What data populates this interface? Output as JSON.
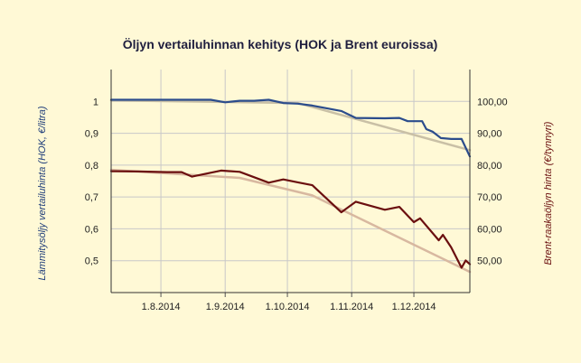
{
  "chart_data": {
    "type": "line",
    "title": "Öljyn vertailuhinnan kehitys (HOK ja Brent euroissa)",
    "x_ticks": [
      "1.8.2014",
      "1.9.2014",
      "1.10.2014",
      "1.11.2014",
      "1.12.2014"
    ],
    "x_range": [
      "2014-07-08",
      "2014-12-28"
    ],
    "y_left": {
      "label": "Lämmitysöljy vertailuhinta (HOK, €/litra)",
      "ticks": [
        "1",
        "0,9",
        "0,8",
        "0,7",
        "0,6",
        "0,5"
      ],
      "range": [
        0.4,
        1.1
      ]
    },
    "y_right": {
      "label": "Brent-raakaöljyn hinta (€/tynnyri)",
      "ticks": [
        "100,00",
        "90,00",
        "80,00",
        "70,00",
        "60,00",
        "50,00"
      ],
      "range": [
        40,
        110
      ]
    },
    "grid": true,
    "series": [
      {
        "axis": "left",
        "color": "#2b4c8c",
        "points": [
          [
            "2014-07-08",
            1.005
          ],
          [
            "2014-07-14",
            1.005
          ],
          [
            "2014-07-28",
            1.005
          ],
          [
            "2014-08-11",
            1.005
          ],
          [
            "2014-08-25",
            1.005
          ],
          [
            "2014-09-01",
            0.997
          ],
          [
            "2014-09-08",
            1.002
          ],
          [
            "2014-09-15",
            1.002
          ],
          [
            "2014-09-22",
            1.005
          ],
          [
            "2014-09-29",
            0.995
          ],
          [
            "2014-10-06",
            0.993
          ],
          [
            "2014-10-13",
            0.987
          ],
          [
            "2014-10-27",
            0.97
          ],
          [
            "2014-11-03",
            0.948
          ],
          [
            "2014-11-17",
            0.947
          ],
          [
            "2014-11-24",
            0.948
          ],
          [
            "2014-11-28",
            0.938
          ],
          [
            "2014-12-01",
            0.938
          ],
          [
            "2014-12-05",
            0.938
          ],
          [
            "2014-12-07",
            0.913
          ],
          [
            "2014-12-10",
            0.905
          ],
          [
            "2014-12-14",
            0.885
          ],
          [
            "2014-12-19",
            0.882
          ],
          [
            "2014-12-24",
            0.882
          ],
          [
            "2014-12-28",
            0.827
          ]
        ]
      },
      {
        "axis": "right",
        "color": "#c9c0a6",
        "points": [
          [
            "2014-07-08",
            100.3
          ],
          [
            "2014-10-06",
            99.5
          ],
          [
            "2014-12-28",
            84.7
          ]
        ]
      },
      {
        "axis": "right",
        "color": "#6b0f0f",
        "points": [
          [
            "2014-07-08",
            78.1
          ],
          [
            "2014-07-21",
            78.0
          ],
          [
            "2014-08-04",
            77.8
          ],
          [
            "2014-08-11",
            77.8
          ],
          [
            "2014-08-16",
            76.4
          ],
          [
            "2014-08-30",
            78.3
          ],
          [
            "2014-09-08",
            77.9
          ],
          [
            "2014-09-22",
            74.5
          ],
          [
            "2014-09-29",
            75.5
          ],
          [
            "2014-10-06",
            74.6
          ],
          [
            "2014-10-13",
            73.7
          ],
          [
            "2014-10-27",
            65.2
          ],
          [
            "2014-11-03",
            68.5
          ],
          [
            "2014-11-17",
            66.0
          ],
          [
            "2014-11-24",
            66.9
          ],
          [
            "2014-12-01",
            62.1
          ],
          [
            "2014-12-04",
            63.3
          ],
          [
            "2014-12-13",
            56.4
          ],
          [
            "2014-12-15",
            58.1
          ],
          [
            "2014-12-19",
            54.2
          ],
          [
            "2014-12-24",
            47.8
          ],
          [
            "2014-12-26",
            50.1
          ],
          [
            "2014-12-28",
            48.9
          ]
        ]
      },
      {
        "axis": "right",
        "color": "#d8b8a0",
        "points": [
          [
            "2014-07-08",
            78.5
          ],
          [
            "2014-09-08",
            76.0
          ],
          [
            "2014-10-13",
            70.5
          ],
          [
            "2014-12-28",
            46.5
          ]
        ]
      }
    ]
  }
}
